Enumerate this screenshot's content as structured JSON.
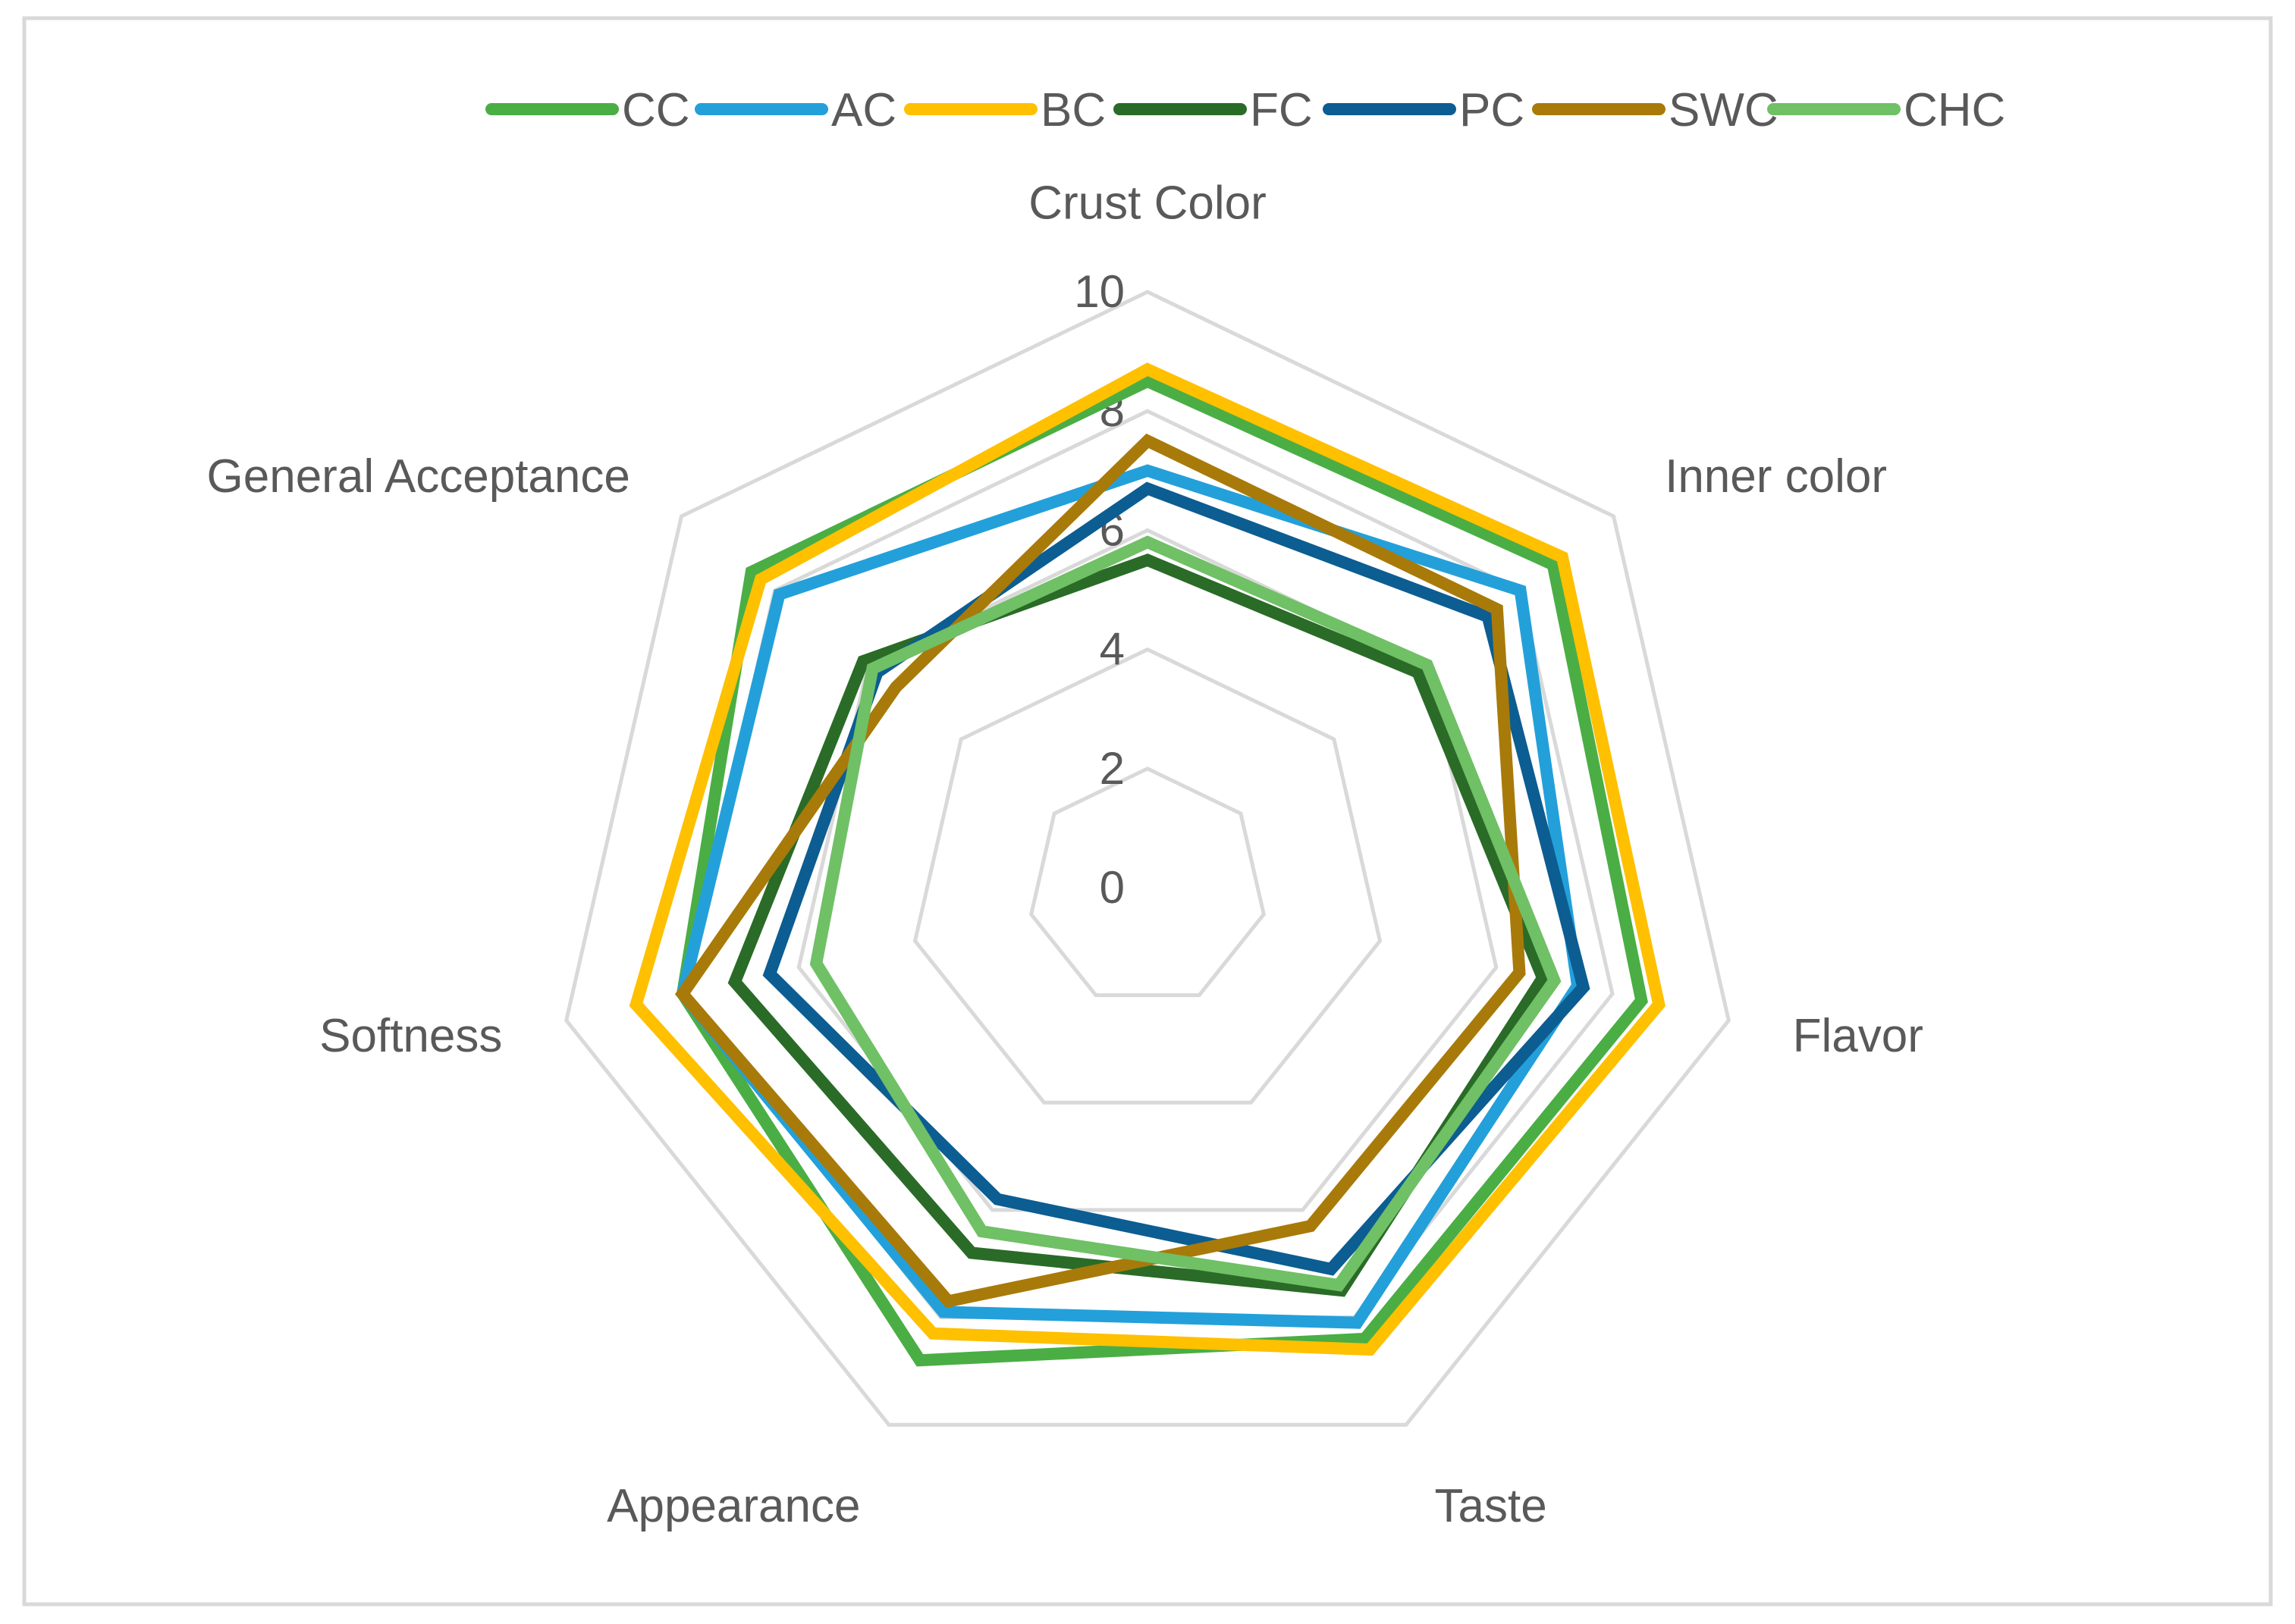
{
  "chart_data": {
    "type": "radar",
    "categories": [
      "Crust Color",
      "Inner color",
      "Flavor",
      "Taste",
      "Appearance",
      "Softness",
      "General Acceptance"
    ],
    "rlim": [
      0,
      10
    ],
    "ticks": [
      0,
      2,
      4,
      6,
      8,
      10
    ],
    "grid": true,
    "legend": "top",
    "series": [
      {
        "name": "CC",
        "color": "#4aae45",
        "values": [
          8.5,
          8.7,
          8.5,
          8.4,
          8.8,
          8.0,
          8.5
        ]
      },
      {
        "name": "AC",
        "color": "#23a0da",
        "values": [
          7.0,
          8.0,
          7.4,
          8.1,
          7.9,
          8.0,
          7.9
        ]
      },
      {
        "name": "BC",
        "color": "#ffc000",
        "values": [
          8.7,
          8.9,
          8.8,
          8.6,
          8.3,
          8.8,
          8.3
        ]
      },
      {
        "name": "FC",
        "color": "#2a6b27",
        "values": [
          5.5,
          5.8,
          6.8,
          7.5,
          6.8,
          7.1,
          6.1
        ]
      },
      {
        "name": "PC",
        "color": "#0c5d92",
        "values": [
          6.7,
          7.3,
          7.5,
          7.1,
          5.8,
          6.5,
          5.8
        ]
      },
      {
        "name": "SWC",
        "color": "#a87a09",
        "values": [
          7.5,
          7.5,
          6.4,
          6.3,
          7.7,
          8.0,
          5.4
        ]
      },
      {
        "name": "CHC",
        "color": "#70c066",
        "values": [
          5.8,
          6.0,
          7.0,
          7.4,
          6.4,
          5.7,
          5.9
        ]
      }
    ]
  }
}
